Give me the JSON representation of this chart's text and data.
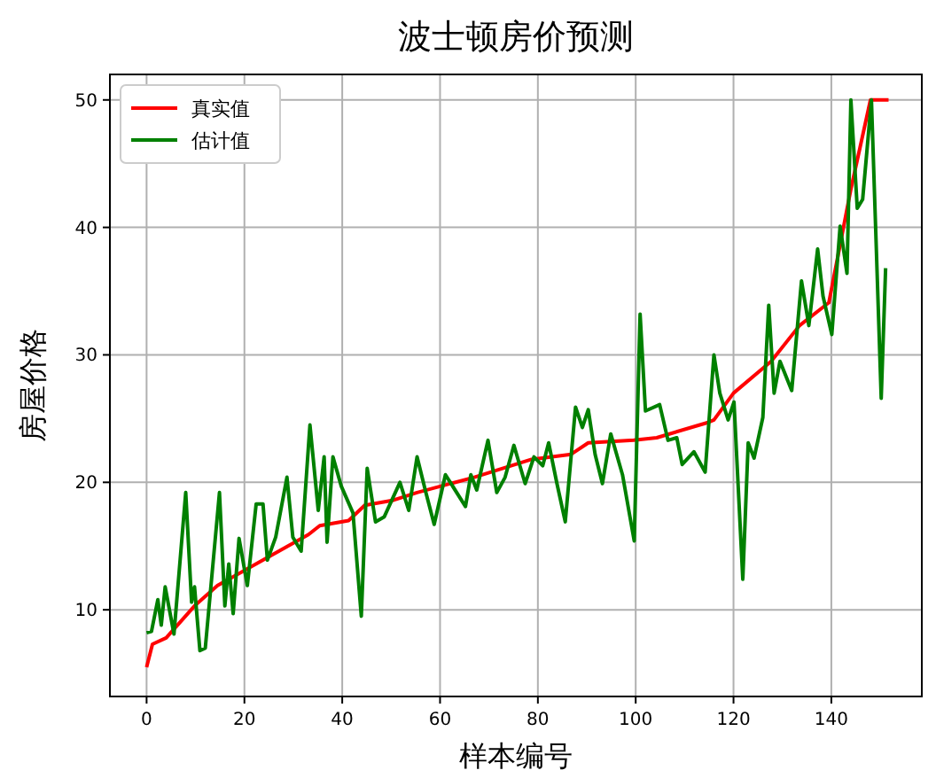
{
  "chart_data": {
    "type": "line",
    "title": "波士顿房价预测",
    "xlabel": "样本编号",
    "ylabel": "房屋价格",
    "xlim": [
      -7.5,
      158.5
    ],
    "ylim": [
      3.2,
      52
    ],
    "xticks": [
      0,
      20,
      40,
      60,
      80,
      100,
      120,
      140
    ],
    "yticks": [
      10,
      20,
      30,
      40,
      50
    ],
    "grid": true,
    "legend": "top left",
    "series": [
      {
        "name": "真实值",
        "color": "#ff0000",
        "x": [
          0,
          1.2,
          4,
          9.8,
          14.5,
          23.8,
          33.1,
          35.4,
          41.3,
          44.6,
          50.5,
          55.3,
          67,
          78.7,
          86.8,
          90.3,
          99.6,
          104.3,
          114.8,
          116,
          120,
          127.7,
          133.5,
          139.5,
          144,
          148,
          151.7
        ],
        "values": [
          5.5,
          7.3,
          7.8,
          10.3,
          11.9,
          13.9,
          15.9,
          16.6,
          17,
          18.2,
          18.6,
          19.2,
          20.4,
          21.8,
          22.2,
          23.1,
          23.3,
          23.5,
          24.7,
          24.9,
          27,
          29.5,
          32.3,
          34.1,
          43,
          50,
          50
        ]
      },
      {
        "name": "估计值",
        "color": "#008000",
        "x": [
          0,
          1,
          2.3,
          3,
          3.8,
          5.6,
          8,
          9.2,
          9.8,
          10.9,
          12,
          14.9,
          16,
          16.8,
          17.7,
          18.9,
          20.6,
          22.4,
          23.8,
          24.7,
          26.4,
          28.7,
          29.9,
          31.6,
          33.4,
          35.1,
          36.3,
          36.9,
          38.1,
          39.8,
          42.2,
          43.9,
          45.1,
          46.8,
          48.6,
          51.8,
          53.6,
          55.3,
          57.1,
          58.8,
          61.1,
          65.2,
          66.3,
          67.5,
          69.8,
          71.6,
          73.3,
          75.1,
          77.4,
          79.2,
          81,
          82.2,
          83.9,
          85.6,
          87.7,
          89.1,
          90.3,
          91.7,
          93.2,
          94.9,
          97.3,
          99.7,
          100.9,
          102,
          104.9,
          106.6,
          108.4,
          109.5,
          111.9,
          114.2,
          116,
          117.2,
          118.9,
          120.1,
          121.9,
          123,
          124.2,
          126,
          127.2,
          128.3,
          129.5,
          131.9,
          133.9,
          135.4,
          137.2,
          138.3,
          140.1,
          141.8,
          143.2,
          144,
          145.3,
          146.4,
          148.2,
          150.2,
          151.1
        ],
        "values": [
          8.2,
          8.3,
          10.8,
          8.8,
          11.8,
          8.1,
          19.2,
          10.6,
          11.8,
          6.8,
          7,
          19.2,
          10.3,
          13.6,
          9.7,
          15.6,
          11.9,
          18.3,
          18.3,
          13.9,
          15.7,
          20.4,
          15.7,
          14.6,
          24.5,
          17.8,
          22,
          15.3,
          22,
          19.7,
          17.6,
          9.5,
          21.1,
          16.9,
          17.3,
          20,
          17.8,
          22,
          19.2,
          16.7,
          20.6,
          18.1,
          20.6,
          19.4,
          23.3,
          19.2,
          20.4,
          22.9,
          19.9,
          22,
          21.3,
          23.1,
          19.9,
          16.9,
          25.9,
          24.3,
          25.7,
          22.2,
          19.9,
          23.8,
          20.6,
          15.4,
          33.2,
          25.6,
          26.1,
          23.3,
          23.5,
          21.4,
          22.4,
          20.8,
          30,
          27,
          24.9,
          26.3,
          12.4,
          23.1,
          21.9,
          25.1,
          33.9,
          27,
          29.5,
          27.2,
          35.8,
          32.3,
          38.3,
          34.6,
          31.6,
          40.1,
          36.4,
          50,
          41.5,
          42.2,
          50,
          26.6,
          36.8
        ]
      }
    ]
  }
}
